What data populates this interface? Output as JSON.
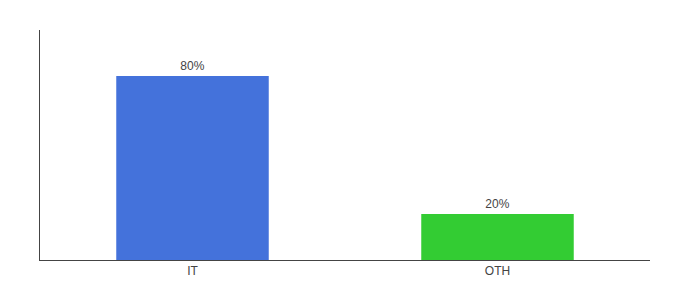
{
  "chart_data": {
    "type": "bar",
    "categories": [
      "IT",
      "OTH"
    ],
    "values": [
      80,
      20
    ],
    "colors": [
      "#4472db",
      "#33cc33"
    ],
    "data_labels": true,
    "value_labels": [
      "80%",
      "20%"
    ],
    "ylim": [
      0,
      100
    ],
    "tick_labels": "x",
    "grid": false
  }
}
